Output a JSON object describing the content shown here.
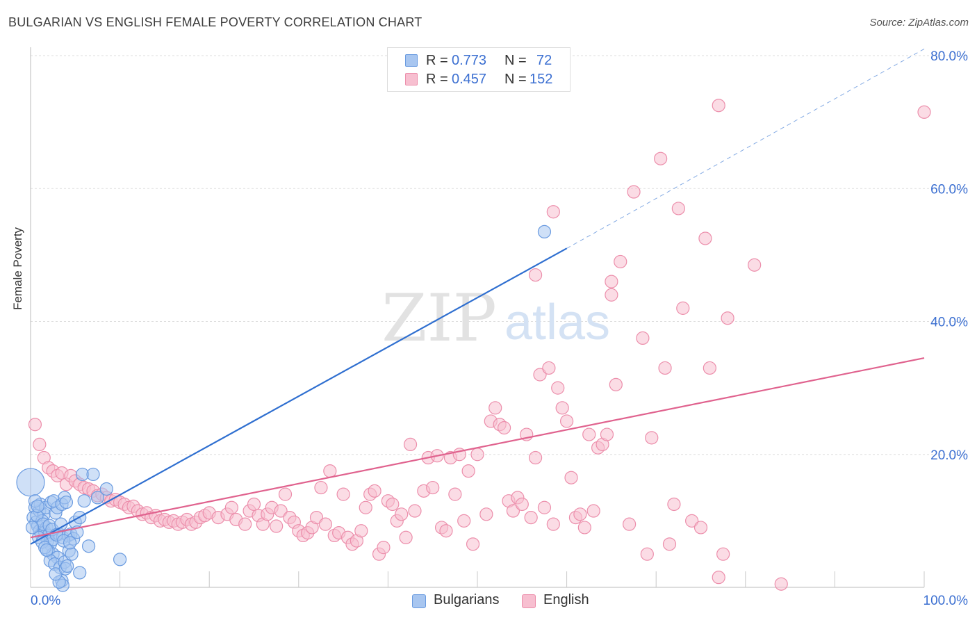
{
  "header": {
    "title": "BULGARIAN VS ENGLISH FEMALE POVERTY CORRELATION CHART",
    "source": "Source: ZipAtlas.com"
  },
  "watermark": {
    "zip": "ZIP",
    "atlas": "atlas"
  },
  "legend_top": {
    "rows": [
      {
        "r_label": "R =",
        "r_value": "0.773",
        "n_label": "N =",
        "n_value": "72"
      },
      {
        "r_label": "R =",
        "r_value": "0.457",
        "n_label": "N =",
        "n_value": "152"
      }
    ]
  },
  "legend_bottom": {
    "items": [
      "Bulgarians",
      "English"
    ]
  },
  "colors": {
    "blue_fill": "#a8c6f0",
    "blue_stroke": "#6a9be0",
    "blue_line": "#2f6fd0",
    "pink_fill": "#f7bfd0",
    "pink_stroke": "#ec8eab",
    "pink_line": "#e0628e",
    "axis_text": "#3b6fd1",
    "grid": "#dedede"
  },
  "chart_data": {
    "type": "scatter",
    "title": "BULGARIAN VS ENGLISH FEMALE POVERTY CORRELATION CHART",
    "xlabel": "",
    "ylabel": "Female Poverty",
    "xlim": [
      0,
      100
    ],
    "ylim": [
      0,
      80
    ],
    "x_ticks": [
      0,
      100
    ],
    "x_tick_labels": [
      "0.0%",
      "100.0%"
    ],
    "y_ticks": [
      20,
      40,
      60,
      80
    ],
    "y_tick_labels": [
      "20.0%",
      "40.0%",
      "60.0%",
      "80.0%"
    ],
    "grid": true,
    "legend_position": "bottom-center",
    "series": [
      {
        "name": "Bulgarians",
        "color": "#a8c6f0",
        "trend": {
          "x": [
            0,
            60,
            100
          ],
          "y": [
            6.5,
            51,
            81
          ],
          "solid_until_x": 60
        },
        "points": [
          [
            0,
            15.8,
            3
          ],
          [
            0.5,
            12,
            1
          ],
          [
            0.3,
            10.5,
            1
          ],
          [
            0.6,
            9.8,
            1
          ],
          [
            0.8,
            9.2,
            1
          ],
          [
            1.0,
            8.5,
            1
          ],
          [
            1.2,
            8.0,
            1
          ],
          [
            1.0,
            11.5,
            1
          ],
          [
            1.5,
            11.0,
            1
          ],
          [
            1.3,
            10.0,
            1
          ],
          [
            0.7,
            10.8,
            1
          ],
          [
            1.8,
            9.0,
            1
          ],
          [
            1.6,
            8.3,
            1
          ],
          [
            2.0,
            7.8,
            1
          ],
          [
            1.9,
            7.0,
            1
          ],
          [
            2.2,
            6.5,
            1
          ],
          [
            2.5,
            7.2,
            1
          ],
          [
            1.4,
            9.5,
            1
          ],
          [
            0.9,
            7.5,
            1
          ],
          [
            1.1,
            12.5,
            1
          ],
          [
            1.7,
            12.0,
            1
          ],
          [
            2.8,
            11.2,
            1
          ],
          [
            2.3,
            12.8,
            1
          ],
          [
            3.0,
            12.0,
            1
          ],
          [
            2.6,
            13.0,
            1
          ],
          [
            3.5,
            12.5,
            1
          ],
          [
            3.8,
            13.5,
            1
          ],
          [
            4.0,
            12.8,
            1
          ],
          [
            3.2,
            8.0,
            1
          ],
          [
            3.6,
            7.5,
            1
          ],
          [
            4.2,
            7.8,
            1
          ],
          [
            4.5,
            8.0,
            1
          ],
          [
            4.8,
            7.3,
            1
          ],
          [
            2.0,
            5.5,
            1
          ],
          [
            2.5,
            5.0,
            1
          ],
          [
            3.0,
            4.5,
            1
          ],
          [
            2.2,
            4.0,
            1
          ],
          [
            2.7,
            3.5,
            1
          ],
          [
            3.3,
            3.0,
            1
          ],
          [
            3.8,
            3.8,
            1
          ],
          [
            4.3,
            5.5,
            1
          ],
          [
            4.6,
            5.0,
            1
          ],
          [
            5.0,
            9.8,
            1
          ],
          [
            5.5,
            10.5,
            1
          ],
          [
            6.0,
            13.0,
            1
          ],
          [
            5.8,
            17.0,
            1
          ],
          [
            7.0,
            17.0,
            1
          ],
          [
            8.5,
            14.8,
            1
          ],
          [
            7.5,
            13.5,
            1
          ],
          [
            6.5,
            6.2,
            1
          ],
          [
            10.0,
            4.2,
            1
          ],
          [
            5.5,
            2.2,
            1
          ],
          [
            3.5,
            1.0,
            1
          ],
          [
            3.6,
            0.3,
            1
          ],
          [
            3.2,
            0.8,
            1
          ],
          [
            2.8,
            2.0,
            1
          ],
          [
            3.9,
            2.8,
            1
          ],
          [
            4.1,
            3.2,
            1
          ],
          [
            0.5,
            13.0,
            1
          ],
          [
            0.8,
            12.2,
            1
          ],
          [
            1.3,
            6.8,
            1
          ],
          [
            1.6,
            6.0,
            1
          ],
          [
            1.8,
            5.6,
            1
          ],
          [
            2.1,
            9.3,
            1
          ],
          [
            2.4,
            8.7,
            1
          ],
          [
            2.9,
            7.9,
            1
          ],
          [
            3.4,
            9.5,
            1
          ],
          [
            3.7,
            7.0,
            1
          ],
          [
            4.4,
            6.7,
            1
          ],
          [
            5.2,
            8.3,
            1
          ],
          [
            0.2,
            9.0,
            1
          ],
          [
            57.5,
            53.5,
            1
          ]
        ]
      },
      {
        "name": "English",
        "color": "#f7bfd0",
        "trend": {
          "x": [
            0,
            100
          ],
          "y": [
            7.5,
            34.5
          ]
        },
        "points": [
          [
            0.5,
            24.5,
            1
          ],
          [
            1.0,
            21.5,
            1
          ],
          [
            1.5,
            19.5,
            1
          ],
          [
            2.0,
            18.0,
            1
          ],
          [
            2.5,
            17.5,
            1
          ],
          [
            3.0,
            16.8,
            1
          ],
          [
            3.5,
            17.2,
            1
          ],
          [
            4.0,
            15.5,
            1
          ],
          [
            4.5,
            16.8,
            1
          ],
          [
            5.0,
            16.0,
            1
          ],
          [
            5.5,
            15.5,
            1
          ],
          [
            6.0,
            15.0,
            1
          ],
          [
            6.5,
            14.8,
            1
          ],
          [
            7.0,
            14.5,
            1
          ],
          [
            7.5,
            13.8,
            1
          ],
          [
            8.0,
            14.0,
            1
          ],
          [
            8.5,
            13.5,
            1
          ],
          [
            9.0,
            13.0,
            1
          ],
          [
            9.5,
            13.2,
            1
          ],
          [
            10.0,
            12.8,
            1
          ],
          [
            10.5,
            12.5,
            1
          ],
          [
            11.0,
            12.0,
            1
          ],
          [
            11.5,
            12.2,
            1
          ],
          [
            12.0,
            11.5,
            1
          ],
          [
            12.5,
            11.0,
            1
          ],
          [
            13.0,
            11.2,
            1
          ],
          [
            13.5,
            10.5,
            1
          ],
          [
            14.0,
            10.8,
            1
          ],
          [
            14.5,
            10.0,
            1
          ],
          [
            15.0,
            10.2,
            1
          ],
          [
            15.5,
            9.8,
            1
          ],
          [
            16.0,
            10.0,
            1
          ],
          [
            16.5,
            9.5,
            1
          ],
          [
            17.0,
            9.8,
            1
          ],
          [
            17.5,
            10.2,
            1
          ],
          [
            18.0,
            9.5,
            1
          ],
          [
            18.5,
            9.8,
            1
          ],
          [
            19.0,
            10.5,
            1
          ],
          [
            19.5,
            10.8,
            1
          ],
          [
            20.0,
            11.2,
            1
          ],
          [
            21.0,
            10.5,
            1
          ],
          [
            22.0,
            11.0,
            1
          ],
          [
            22.5,
            12.0,
            1
          ],
          [
            23.0,
            10.2,
            1
          ],
          [
            24.0,
            9.5,
            1
          ],
          [
            24.5,
            11.5,
            1
          ],
          [
            25.0,
            12.5,
            1
          ],
          [
            25.5,
            10.8,
            1
          ],
          [
            26.0,
            9.5,
            1
          ],
          [
            26.5,
            11.0,
            1
          ],
          [
            27.0,
            12.0,
            1
          ],
          [
            27.5,
            9.2,
            1
          ],
          [
            28.0,
            11.5,
            1
          ],
          [
            28.5,
            14.0,
            1
          ],
          [
            29.0,
            10.5,
            1
          ],
          [
            29.5,
            9.8,
            1
          ],
          [
            30.0,
            8.5,
            1
          ],
          [
            30.5,
            7.8,
            1
          ],
          [
            31.0,
            8.2,
            1
          ],
          [
            31.5,
            9.0,
            1
          ],
          [
            32.0,
            10.5,
            1
          ],
          [
            32.5,
            15.0,
            1
          ],
          [
            33.0,
            9.5,
            1
          ],
          [
            33.5,
            17.5,
            1
          ],
          [
            34.0,
            7.8,
            1
          ],
          [
            34.5,
            8.2,
            1
          ],
          [
            35.0,
            14.0,
            1
          ],
          [
            35.5,
            7.5,
            1
          ],
          [
            36.0,
            6.5,
            1
          ],
          [
            36.5,
            7.0,
            1
          ],
          [
            37.0,
            8.5,
            1
          ],
          [
            37.5,
            12.0,
            1
          ],
          [
            38.0,
            14.0,
            1
          ],
          [
            38.5,
            14.5,
            1
          ],
          [
            39.0,
            5.0,
            1
          ],
          [
            39.5,
            6.0,
            1
          ],
          [
            40.0,
            13.0,
            1
          ],
          [
            40.5,
            12.5,
            1
          ],
          [
            41.0,
            10.0,
            1
          ],
          [
            41.5,
            11.0,
            1
          ],
          [
            42.0,
            7.5,
            1
          ],
          [
            42.5,
            21.5,
            1
          ],
          [
            43.0,
            11.5,
            1
          ],
          [
            44.0,
            14.5,
            1
          ],
          [
            44.5,
            19.5,
            1
          ],
          [
            45.0,
            15.0,
            1
          ],
          [
            45.5,
            19.8,
            1
          ],
          [
            46.0,
            9.0,
            1
          ],
          [
            46.5,
            8.5,
            1
          ],
          [
            47.0,
            19.5,
            1
          ],
          [
            47.5,
            14.0,
            1
          ],
          [
            48.0,
            20.0,
            1
          ],
          [
            48.5,
            10.0,
            1
          ],
          [
            49.0,
            17.5,
            1
          ],
          [
            49.5,
            6.5,
            1
          ],
          [
            50.0,
            20.0,
            1
          ],
          [
            51.0,
            11.0,
            1
          ],
          [
            51.5,
            25.0,
            1
          ],
          [
            52.0,
            27.0,
            1
          ],
          [
            52.5,
            24.5,
            1
          ],
          [
            53.0,
            24.0,
            1
          ],
          [
            53.5,
            13.0,
            1
          ],
          [
            54.0,
            11.5,
            1
          ],
          [
            54.5,
            13.5,
            1
          ],
          [
            55.0,
            12.5,
            1
          ],
          [
            55.5,
            23.0,
            1
          ],
          [
            56.0,
            10.5,
            1
          ],
          [
            56.5,
            19.5,
            1
          ],
          [
            57.0,
            32.0,
            1
          ],
          [
            57.5,
            12.0,
            1
          ],
          [
            58.0,
            33.0,
            1
          ],
          [
            58.5,
            9.5,
            1
          ],
          [
            59.0,
            30.0,
            1
          ],
          [
            59.5,
            27.0,
            1
          ],
          [
            60.0,
            25.0,
            1
          ],
          [
            60.5,
            16.5,
            1
          ],
          [
            61.0,
            10.5,
            1
          ],
          [
            61.5,
            11.0,
            1
          ],
          [
            62.0,
            9.0,
            1
          ],
          [
            62.5,
            23.0,
            1
          ],
          [
            63.0,
            11.5,
            1
          ],
          [
            63.5,
            21.0,
            1
          ],
          [
            64.0,
            21.5,
            1
          ],
          [
            64.5,
            23.0,
            1
          ],
          [
            65.0,
            44.0,
            1
          ],
          [
            65.5,
            30.5,
            1
          ],
          [
            66.0,
            49.0,
            1
          ],
          [
            67.0,
            9.5,
            1
          ],
          [
            68.5,
            37.5,
            1
          ],
          [
            69.0,
            5.0,
            1
          ],
          [
            69.5,
            22.5,
            1
          ],
          [
            71.0,
            33.0,
            1
          ],
          [
            71.5,
            6.5,
            1
          ],
          [
            72.0,
            12.5,
            1
          ],
          [
            73.0,
            42.0,
            1
          ],
          [
            74.0,
            10.0,
            1
          ],
          [
            75.0,
            9.0,
            1
          ],
          [
            76.0,
            33.0,
            1
          ],
          [
            77.0,
            1.5,
            1
          ],
          [
            77.5,
            5.0,
            1
          ],
          [
            78.0,
            40.5,
            1
          ],
          [
            81.0,
            48.5,
            1
          ],
          [
            56.5,
            47.0,
            1
          ],
          [
            67.5,
            59.5,
            1
          ],
          [
            70.5,
            64.5,
            1
          ],
          [
            72.5,
            57.0,
            1
          ],
          [
            75.5,
            52.5,
            1
          ],
          [
            77.0,
            72.5,
            1
          ],
          [
            84.0,
            0.5,
            1
          ],
          [
            100.0,
            71.5,
            1
          ],
          [
            58.5,
            56.5,
            1
          ],
          [
            65.0,
            46.0,
            1
          ]
        ]
      }
    ]
  }
}
